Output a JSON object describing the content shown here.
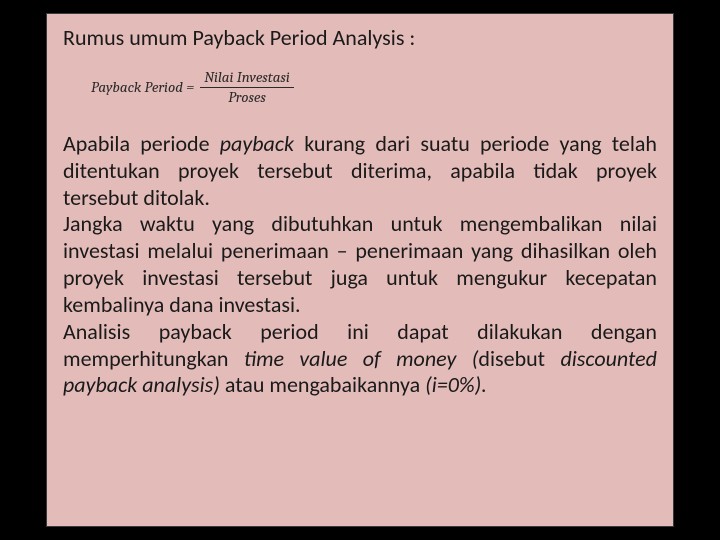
{
  "slide": {
    "background_color": "#000000",
    "box_background_color": "#e3bbb9",
    "box_border_color": "#3a3a3a",
    "text_color": "#1a1a1a",
    "title": "Rumus umum Payback Period Analysis :",
    "title_fontsize": 22,
    "formula": {
      "lhs": "Payback Period =",
      "numerator": "Nilai Investasi",
      "denominator": "Proses",
      "font_family": "Cambria",
      "font_style": "italic",
      "fontsize": 15
    },
    "body_fontsize": 22,
    "paragraphs": {
      "p1_a": "Apabila periode ",
      "p1_b": "payback",
      "p1_c": " kurang dari suatu periode yang telah ditentukan proyek tersebut diterima, apabila tidak proyek tersebut ditolak.",
      "p2": "Jangka waktu yang dibutuhkan untuk mengembalikan nilai investasi melalui penerimaan – penerimaan yang dihasilkan oleh proyek investasi tersebut juga untuk mengukur kecepatan kembalinya dana investasi.",
      "p3_a": "Analisis payback period ini dapat dilakukan dengan memperhitungkan ",
      "p3_b": "time value of money (",
      "p3_c": "disebut ",
      "p3_d": "discounted payback analysis)",
      "p3_e": " atau mengabaikannya ",
      "p3_f": "(i=0%)."
    }
  }
}
